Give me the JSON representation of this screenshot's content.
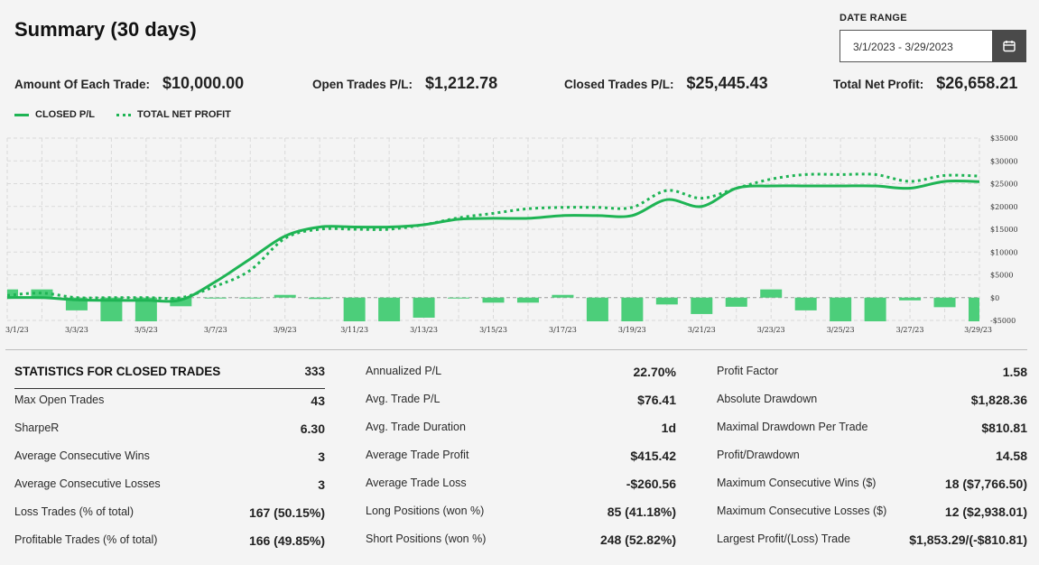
{
  "header": {
    "title": "Summary (30 days)"
  },
  "date_range": {
    "label": "DATE RANGE",
    "value": "3/1/2023 - 3/29/2023",
    "icon": "calendar-icon"
  },
  "kpis": [
    {
      "label": "Amount Of Each Trade:",
      "value": "$10,000.00"
    },
    {
      "label": "Open Trades P/L:",
      "value": "$1,212.78"
    },
    {
      "label": "Closed Trades P/L:",
      "value": "$25,445.43"
    },
    {
      "label": "Total Net Profit:",
      "value": "$26,658.21"
    }
  ],
  "legend": {
    "closed": "CLOSED P/L",
    "total": "TOTAL NET PROFIT"
  },
  "colors": {
    "accent": "#1eb454",
    "bar": "#4cce7a",
    "grid": "#d9d9d9"
  },
  "chart_data": {
    "type": "line",
    "x": [
      "3/1/23",
      "3/2/23",
      "3/3/23",
      "3/4/23",
      "3/5/23",
      "3/6/23",
      "3/7/23",
      "3/8/23",
      "3/9/23",
      "3/10/23",
      "3/11/23",
      "3/12/23",
      "3/13/23",
      "3/14/23",
      "3/15/23",
      "3/16/23",
      "3/17/23",
      "3/18/23",
      "3/19/23",
      "3/20/23",
      "3/21/23",
      "3/22/23",
      "3/23/23",
      "3/24/23",
      "3/25/23",
      "3/26/23",
      "3/27/23",
      "3/28/23",
      "3/29/23"
    ],
    "tick_labels": [
      "3/1/23",
      "3/3/23",
      "3/5/23",
      "3/7/23",
      "3/9/23",
      "3/11/23",
      "3/13/23",
      "3/15/23",
      "3/17/23",
      "3/19/23",
      "3/21/23",
      "3/23/23",
      "3/25/23",
      "3/27/23",
      "3/29/23"
    ],
    "series": [
      {
        "name": "CLOSED P/L",
        "style": "solid",
        "values": [
          0,
          0,
          -500,
          -600,
          -600,
          -500,
          3500,
          8500,
          13500,
          15500,
          15500,
          15500,
          16000,
          17200,
          17400,
          17400,
          18000,
          18000,
          18000,
          21500,
          20000,
          24000,
          24500,
          24500,
          24500,
          24500,
          24000,
          25500,
          25445
        ]
      },
      {
        "name": "TOTAL NET PROFIT",
        "style": "dotted",
        "values": [
          500,
          1000,
          0,
          0,
          0,
          0,
          2500,
          6000,
          13000,
          15000,
          15000,
          15000,
          16000,
          17500,
          18500,
          19500,
          19800,
          19800,
          19800,
          23500,
          21800,
          24000,
          26000,
          27000,
          27000,
          27000,
          25500,
          26800,
          26658
        ]
      },
      {
        "name": "Daily P/L",
        "style": "bar",
        "values": [
          1800,
          1800,
          -2800,
          -5200,
          -5200,
          -1900,
          -200,
          0,
          600,
          -300,
          -5200,
          -5200,
          -4400,
          0,
          -1100,
          -1100,
          600,
          -5200,
          -5200,
          -1500,
          -3600,
          -2000,
          1800,
          -2800,
          -5200,
          -5200,
          -600,
          -2100,
          -5200
        ]
      }
    ],
    "yticks": [
      35000,
      30000,
      25000,
      20000,
      15000,
      10000,
      5000,
      0,
      -5000
    ],
    "ytick_labels": [
      "$35000",
      "$30000",
      "$25000",
      "$20000",
      "$15000",
      "$10000",
      "$5000",
      "$0",
      "-$5000"
    ],
    "ylim": [
      -5000,
      35000
    ],
    "grid": true,
    "y_axis_side": "right"
  },
  "stats": [
    {
      "header": {
        "label": "STATISTICS FOR CLOSED TRADES",
        "value": "333"
      },
      "rows": [
        {
          "label": "Max Open Trades",
          "value": "43"
        },
        {
          "label": "SharpeR",
          "value": "6.30"
        },
        {
          "label": "Average Consecutive Wins",
          "value": "3"
        },
        {
          "label": "Average Consecutive Losses",
          "value": "3"
        },
        {
          "label": "Loss Trades (% of total)",
          "value": "167 (50.15%)"
        },
        {
          "label": "Profitable Trades (% of total)",
          "value": "166 (49.85%)"
        }
      ]
    },
    {
      "rows": [
        {
          "label": "Annualized P/L",
          "value": "22.70%"
        },
        {
          "label": "Avg. Trade P/L",
          "value": "$76.41"
        },
        {
          "label": "Avg. Trade Duration",
          "value": "1d"
        },
        {
          "label": "Average Trade Profit",
          "value": "$415.42"
        },
        {
          "label": "Average Trade Loss",
          "value": "-$260.56"
        },
        {
          "label": "Long Positions (won %)",
          "value": "85 (41.18%)"
        },
        {
          "label": "Short Positions (won %)",
          "value": "248 (52.82%)"
        }
      ]
    },
    {
      "rows": [
        {
          "label": "Profit Factor",
          "value": "1.58"
        },
        {
          "label": "Absolute Drawdown",
          "value": "$1,828.36"
        },
        {
          "label": "Maximal Drawdown Per Trade",
          "value": "$810.81"
        },
        {
          "label": "Profit/Drawdown",
          "value": "14.58"
        },
        {
          "label": "Maximum Consecutive Wins ($)",
          "value": "18 ($7,766.50)"
        },
        {
          "label": "Maximum Consecutive Losses ($)",
          "value": "12 ($2,938.01)"
        },
        {
          "label": "Largest Profit/(Loss) Trade",
          "value": "$1,853.29/(-$810.81)"
        }
      ]
    }
  ]
}
